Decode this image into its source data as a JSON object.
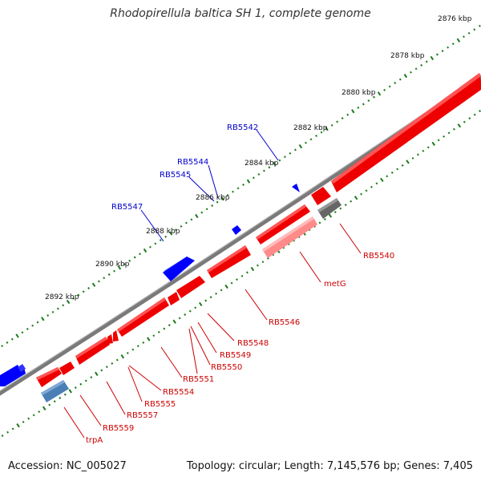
{
  "title": "Rhodopirellula baltica SH 1, complete genome",
  "footer": {
    "accession": "Accession: NC_005027",
    "topology": "Topology: circular; Length: 7,145,576 bp; Genes: 7,405"
  },
  "colors": {
    "forward_strand": "#0000ff",
    "reverse_strand": "#ff0000",
    "rna_gene": "#ff8080",
    "other_feature": "#666666",
    "trpA_feature": "#4682b4",
    "backbone": "#808080",
    "tick": "#1a7a1a",
    "label_blue": "#0000cc",
    "label_red": "#cc0000"
  },
  "scale_labels": [
    "2876 kbp",
    "2878 kbp",
    "2880 kbp",
    "2882 kbp",
    "2884 kbp",
    "2886 kbp",
    "2888 kbp",
    "2890 kbp",
    "2892 kbp"
  ],
  "gene_labels_forward": [
    "RB5542",
    "RB5544",
    "RB5545",
    "RB5547"
  ],
  "gene_labels_reverse": [
    "RB5540",
    "metG",
    "RB5546",
    "RB5548",
    "RB5549",
    "RB5550",
    "RB5551",
    "RB5554",
    "RB5555",
    "RB5557",
    "RB5559",
    "trpA"
  ]
}
